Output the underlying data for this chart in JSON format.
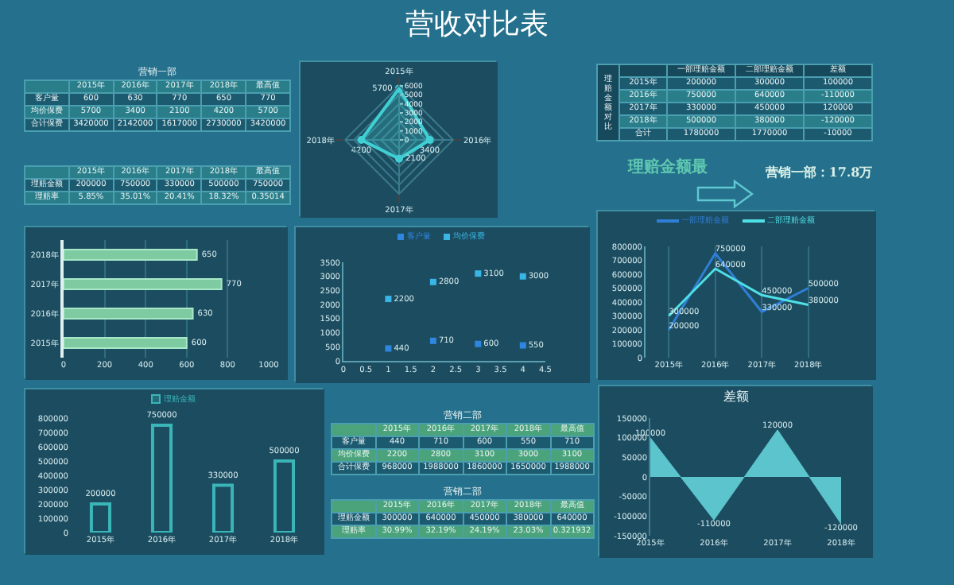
{
  "chart_data": [
    {
      "type": "other",
      "title": "营收对比表"
    },
    {
      "type": "heatmap",
      "title": "营销一部",
      "categories": [
        "2015年",
        "2016年",
        "2017年",
        "2018年",
        "最高值"
      ],
      "y_categories": [
        "客户量",
        "均价保费",
        "合计保费"
      ],
      "cells": [
        [
          600,
          630,
          770,
          650,
          770
        ],
        [
          5700,
          3400,
          2100,
          4200,
          5700
        ],
        [
          3420000,
          2142000,
          1617000,
          2730000,
          3420000
        ]
      ],
      "data_labels": true
    },
    {
      "type": "radar",
      "categories": [
        "2015年",
        "2016年",
        "2017年",
        "2018年"
      ],
      "series": [
        {
          "color": "#3fd0d4",
          "values": [
            5700,
            3400,
            2100,
            4200
          ]
        }
      ],
      "ylim": [
        0,
        6000
      ],
      "yticks": [
        0,
        1000,
        2000,
        3000,
        4000,
        5000,
        6000
      ],
      "data_labels": true,
      "grid": true,
      "marker": "circle"
    },
    {
      "type": "heatmap",
      "ylabel": "理赔金额对比",
      "categories": [
        "一部理赔金额",
        "二部理赔金额",
        "差额"
      ],
      "y_categories": [
        "2015年",
        "2016年",
        "2017年",
        "2018年",
        "合计"
      ],
      "cells": [
        [
          200000,
          300000,
          100000
        ],
        [
          750000,
          640000,
          -110000
        ],
        [
          330000,
          450000,
          120000
        ],
        [
          500000,
          380000,
          -120000
        ],
        [
          1780000,
          1770000,
          -10000
        ]
      ],
      "data_labels": true
    },
    {
      "type": "heatmap",
      "categories": [
        "2015年",
        "2016年",
        "2017年",
        "2018年",
        "最高值"
      ],
      "y_categories": [
        "理赔金额",
        "理赔率"
      ],
      "cells": [
        [
          200000,
          750000,
          330000,
          500000,
          750000
        ],
        [
          5.85,
          35.01,
          20.41,
          18.32,
          0.35014
        ]
      ],
      "cell_labels": [
        [
          "200000",
          "750000",
          "330000",
          "500000",
          "750000"
        ],
        [
          "5.85%",
          "35.01%",
          "20.41%",
          "18.32%",
          "0.35014"
        ]
      ]
    },
    {
      "type": "other",
      "annotations": [
        "理赔金额最",
        "营销一部：17.8万"
      ]
    },
    {
      "type": "bar",
      "orientation": "horizontal",
      "categories": [
        "2018年",
        "2017年",
        "2016年",
        "2015年"
      ],
      "values": [
        650,
        770,
        630,
        600
      ],
      "color": "#7ecba1",
      "xlim": [
        0,
        1000
      ],
      "xticks": [
        0,
        200,
        400,
        600,
        800,
        1000
      ],
      "grid": "x",
      "data_labels": true
    },
    {
      "type": "scatter",
      "x": [
        1,
        2,
        3,
        4
      ],
      "series": [
        {
          "name": "客户量",
          "color": "#2f86e0",
          "values": [
            440,
            710,
            600,
            550
          ]
        },
        {
          "name": "均价保费",
          "color": "#3ab6e6",
          "values": [
            2200,
            2800,
            3100,
            3000
          ]
        }
      ],
      "xlim": [
        0,
        4.5
      ],
      "xticks": [
        0,
        0.5,
        1,
        1.5,
        2,
        2.5,
        3,
        3.5,
        4,
        4.5
      ],
      "ylim": [
        0,
        3500
      ],
      "yticks": [
        0,
        500,
        1000,
        1500,
        2000,
        2500,
        3000,
        3500
      ],
      "legend": "top",
      "marker": "square",
      "data_labels": true
    },
    {
      "type": "line",
      "categories": [
        "2015年",
        "2016年",
        "2017年",
        "2018年"
      ],
      "series": [
        {
          "name": "一部理赔金额",
          "color": "#2f7fd6",
          "values": [
            200000,
            750000,
            330000,
            500000
          ]
        },
        {
          "name": "二部理赔金额",
          "color": "#4fdfe6",
          "values": [
            300000,
            640000,
            450000,
            380000
          ]
        }
      ],
      "ylim": [
        0,
        800000
      ],
      "yticks": [
        0,
        100000,
        200000,
        300000,
        400000,
        500000,
        600000,
        700000,
        800000
      ],
      "grid": "x",
      "legend": "top",
      "data_labels": true
    },
    {
      "type": "bar",
      "categories": [
        "2015年",
        "2016年",
        "2017年",
        "2018年"
      ],
      "series": [
        {
          "name": "理赔金额",
          "color": "#3ab5b8",
          "values": [
            200000,
            750000,
            330000,
            500000
          ]
        }
      ],
      "ylim": [
        0,
        800000
      ],
      "yticks": [
        0,
        100000,
        200000,
        300000,
        400000,
        500000,
        600000,
        700000,
        800000
      ],
      "legend": "top",
      "data_labels": true
    },
    {
      "type": "heatmap",
      "title": "营销二部",
      "categories": [
        "2015年",
        "2016年",
        "2017年",
        "2018年",
        "最高值"
      ],
      "y_categories": [
        "客户量",
        "均价保费",
        "合计保费"
      ],
      "cells": [
        [
          440,
          710,
          600,
          550,
          710
        ],
        [
          2200,
          2800,
          3100,
          3000,
          3100
        ],
        [
          968000,
          1988000,
          1860000,
          1650000,
          1988000
        ]
      ],
      "data_labels": true
    },
    {
      "type": "area",
      "title": "差额",
      "categories": [
        "2015年",
        "2016年",
        "2017年",
        "2018年"
      ],
      "values": [
        100000,
        -110000,
        120000,
        -120000
      ],
      "color": "#5bc4cc",
      "ylim": [
        -150000,
        150000
      ],
      "yticks": [
        -150000,
        -100000,
        -50000,
        0,
        50000,
        100000,
        150000
      ],
      "data_labels": true
    },
    {
      "type": "heatmap",
      "title": "营销二部",
      "categories": [
        "2015年",
        "2016年",
        "2017年",
        "2018年",
        "最高值"
      ],
      "y_categories": [
        "理赔金额",
        "理赔率"
      ],
      "cells": [
        [
          300000,
          640000,
          450000,
          380000,
          640000
        ],
        [
          30.99,
          32.19,
          24.19,
          23.03,
          0.321932
        ]
      ],
      "cell_labels": [
        [
          "300000",
          "640000",
          "450000",
          "380000",
          "640000"
        ],
        [
          "30.99%",
          "32.19%",
          "24.19%",
          "23.03%",
          "0.321932"
        ]
      ]
    }
  ]
}
